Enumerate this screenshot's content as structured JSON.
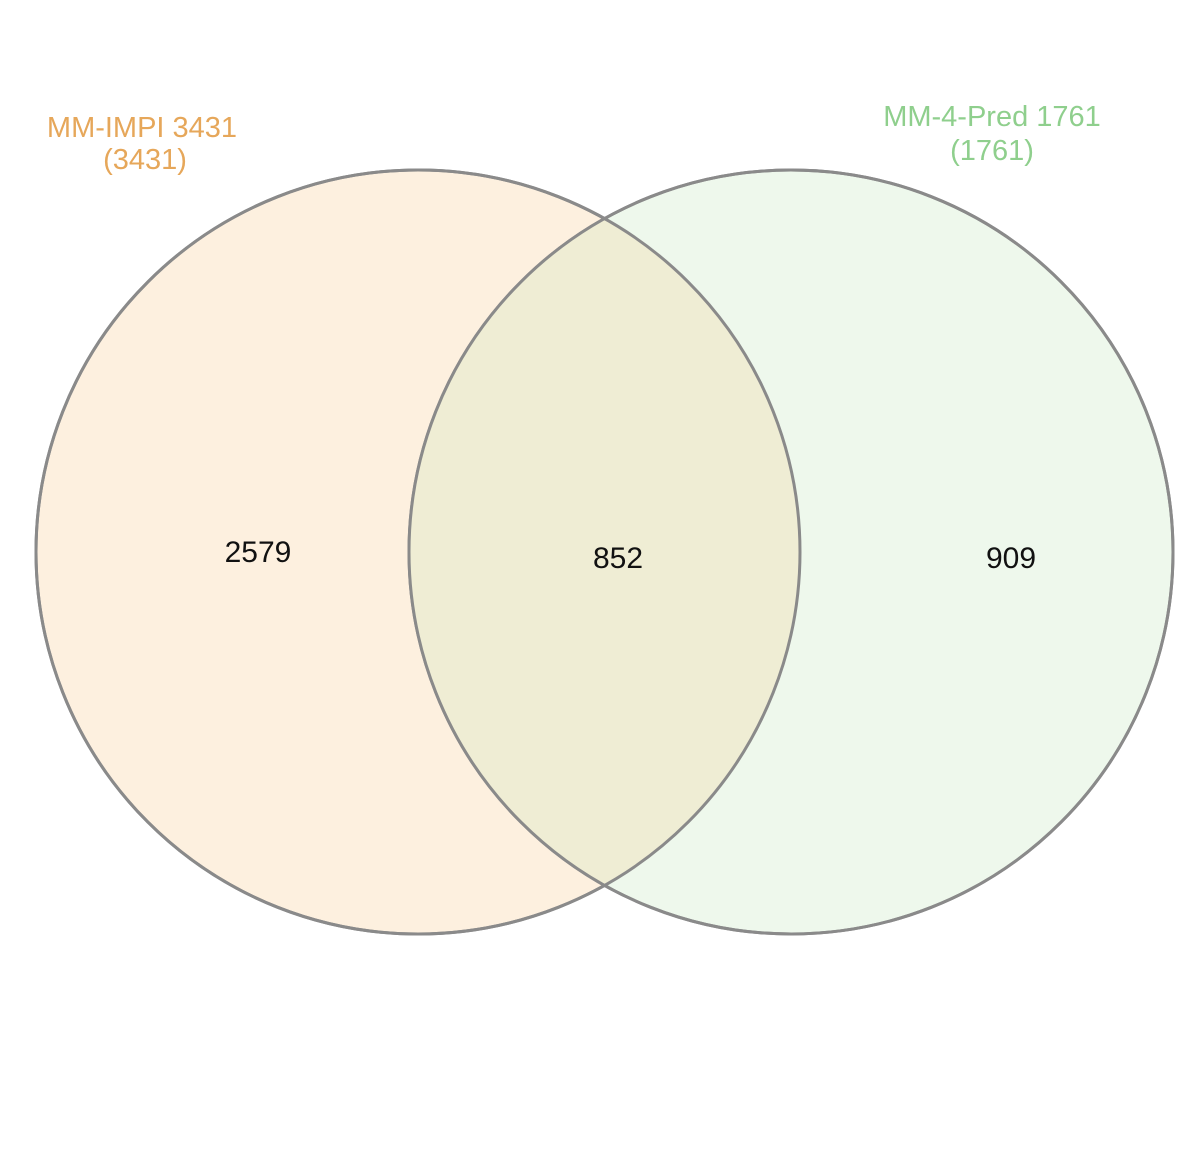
{
  "sets": [
    {
      "name": "MM-IMPI 3431",
      "size_label": "(3431)",
      "fill": "#fdf0df",
      "label_color": "#e6a75a",
      "stroke": "#8a8a8a"
    },
    {
      "name": "MM-4-Pred 1761",
      "size_label": "(1761)",
      "fill": "#eef8ec",
      "label_color": "#8fcf8d",
      "stroke": "#8a8a8a"
    }
  ],
  "regions": {
    "only_a": "2579",
    "intersection": "852",
    "only_b": "909"
  },
  "intersection_fill": "#efedd4"
}
